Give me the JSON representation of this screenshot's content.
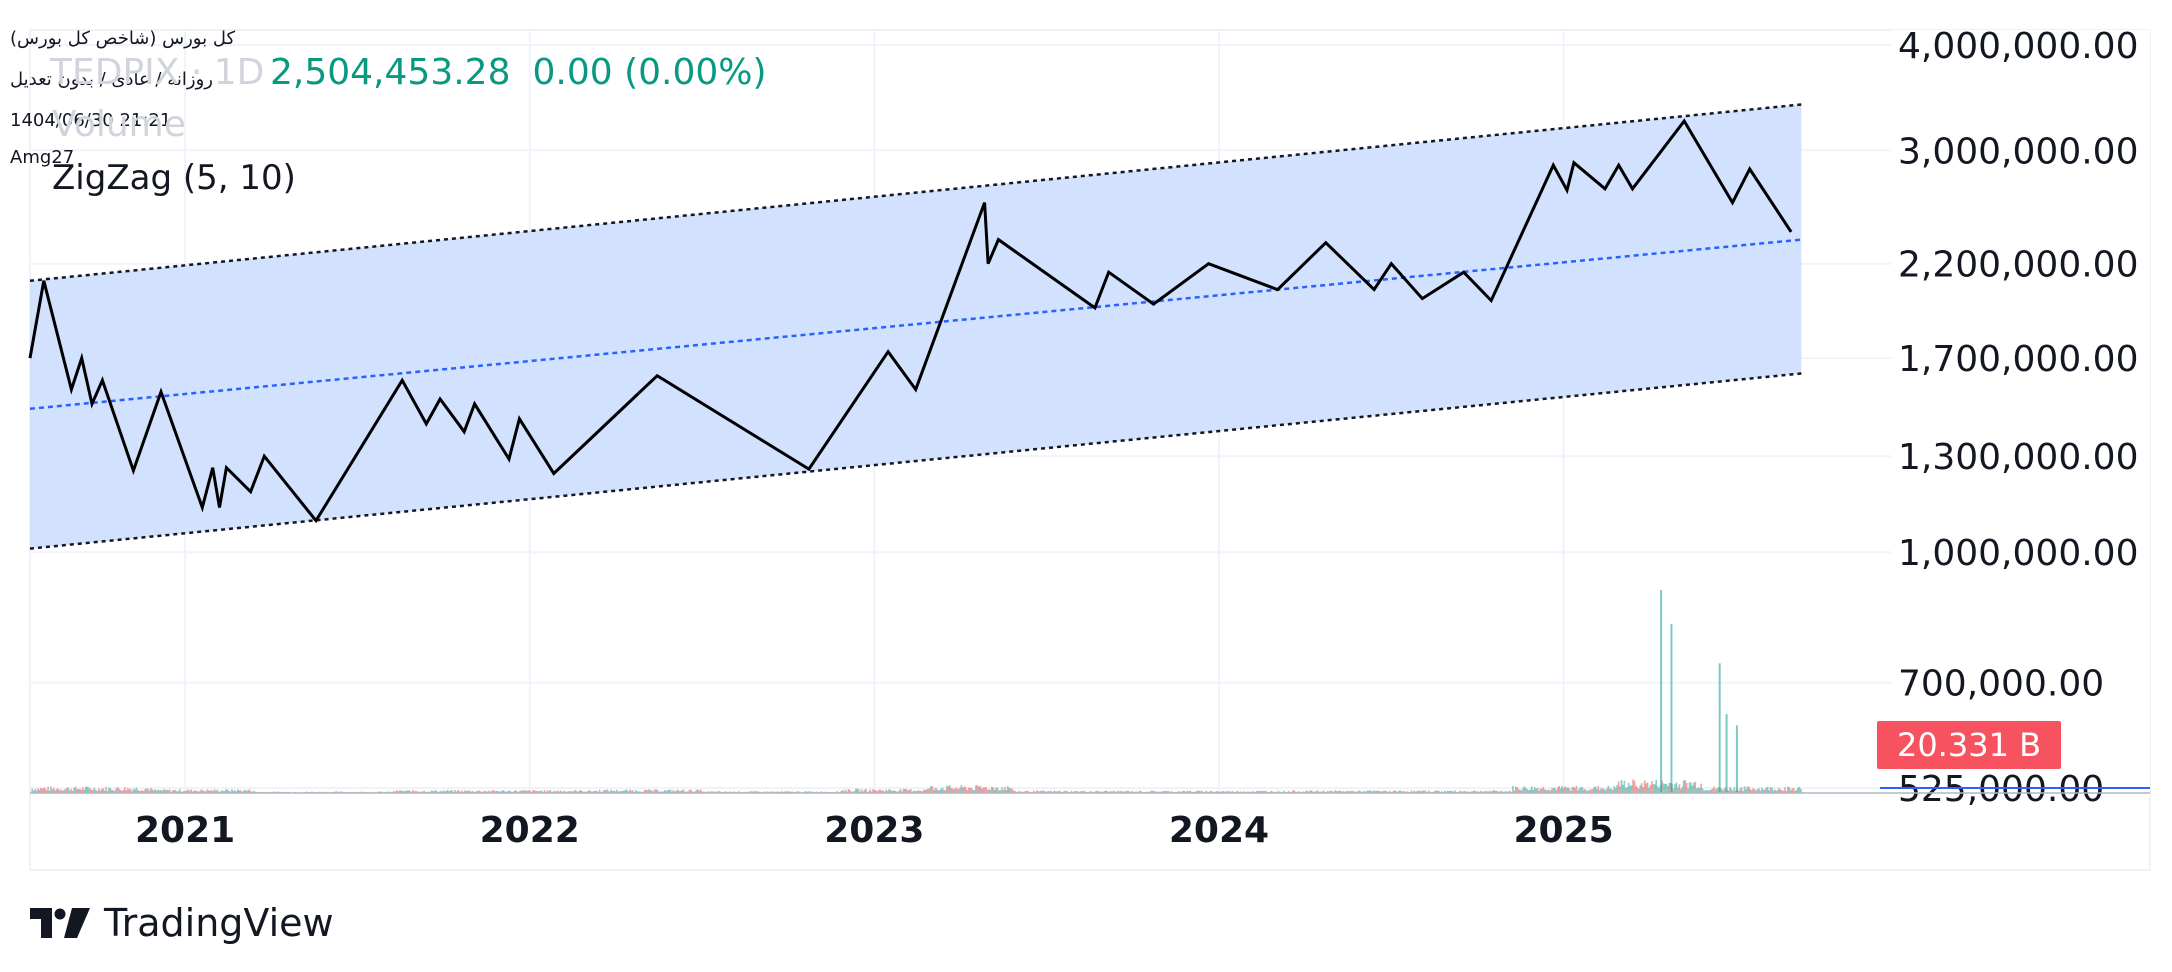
{
  "header": {
    "title": "کل بورس (شاخص کل بورس)",
    "interval_line": "روزانه / عادی / بدون تعدیل",
    "datetime": "1404/06/30 21:21",
    "author": "Amg27"
  },
  "legend": {
    "ghost_symbol": "TEDPIX · 1D",
    "ghost_volume": "Volume",
    "last_price": "2,504,453.28",
    "change": "0.00 (0.00%)",
    "indicator": "ZigZag (5, 10)"
  },
  "volume_badge": "20.331 B",
  "branding": {
    "name": "TradingView"
  },
  "colors": {
    "price_up": "#089981",
    "volume_up": "#26a69a",
    "volume_down": "#ef5350",
    "badge_bg": "#f7525f",
    "channel_fill": "#d0dffd",
    "median_line": "#2962ff",
    "boundary_line": "#131722",
    "zigzag": "#000000",
    "grid": "#f0f3fa"
  },
  "chart_data": {
    "type": "line",
    "title": "",
    "xlabel": "",
    "ylabel": "",
    "scale": "log",
    "x_range": [
      2020.55,
      2025.95
    ],
    "ylim": [
      525000,
      4000000
    ],
    "x_ticks": [
      {
        "value": 2021.0,
        "label": "2021"
      },
      {
        "value": 2022.0,
        "label": "2022"
      },
      {
        "value": 2023.0,
        "label": "2023"
      },
      {
        "value": 2024.0,
        "label": "2024"
      },
      {
        "value": 2025.0,
        "label": "2025"
      }
    ],
    "y_ticks": [
      {
        "value": 4000000,
        "label": "4,000,000.00"
      },
      {
        "value": 3000000,
        "label": "3,000,000.00"
      },
      {
        "value": 2200000,
        "label": "2,200,000.00"
      },
      {
        "value": 1700000,
        "label": "1,700,000.00"
      },
      {
        "value": 1300000,
        "label": "1,300,000.00"
      },
      {
        "value": 1000000,
        "label": "1,000,000.00"
      },
      {
        "value": 700000,
        "label": "700,000.00"
      },
      {
        "value": 525000,
        "label": "525,000.00"
      }
    ],
    "grid": true,
    "series": [
      {
        "name": "ZigZag (5, 10)",
        "points": [
          [
            2020.55,
            1700000
          ],
          [
            2020.59,
            2100000
          ],
          [
            2020.67,
            1560000
          ],
          [
            2020.7,
            1700000
          ],
          [
            2020.73,
            1500000
          ],
          [
            2020.76,
            1600000
          ],
          [
            2020.85,
            1250000
          ],
          [
            2020.93,
            1550000
          ],
          [
            2021.05,
            1130000
          ],
          [
            2021.08,
            1260000
          ],
          [
            2021.1,
            1130000
          ],
          [
            2021.12,
            1260000
          ],
          [
            2021.19,
            1180000
          ],
          [
            2021.23,
            1300000
          ],
          [
            2021.38,
            1090000
          ],
          [
            2021.63,
            1600000
          ],
          [
            2021.7,
            1420000
          ],
          [
            2021.74,
            1520000
          ],
          [
            2021.81,
            1390000
          ],
          [
            2021.84,
            1500000
          ],
          [
            2021.94,
            1290000
          ],
          [
            2021.97,
            1440000
          ],
          [
            2022.07,
            1240000
          ],
          [
            2022.37,
            1620000
          ],
          [
            2022.81,
            1255000
          ],
          [
            2023.04,
            1730000
          ],
          [
            2023.12,
            1560000
          ],
          [
            2023.32,
            2600000
          ],
          [
            2023.33,
            2200000
          ],
          [
            2023.36,
            2350000
          ],
          [
            2023.64,
            1950000
          ],
          [
            2023.68,
            2150000
          ],
          [
            2023.81,
            1970000
          ],
          [
            2023.97,
            2200000
          ],
          [
            2024.17,
            2050000
          ],
          [
            2024.31,
            2330000
          ],
          [
            2024.45,
            2050000
          ],
          [
            2024.5,
            2200000
          ],
          [
            2024.59,
            2000000
          ],
          [
            2024.71,
            2150000
          ],
          [
            2024.79,
            1990000
          ],
          [
            2024.97,
            2880000
          ],
          [
            2025.01,
            2690000
          ],
          [
            2025.03,
            2900000
          ],
          [
            2025.12,
            2700000
          ],
          [
            2025.16,
            2880000
          ],
          [
            2025.2,
            2700000
          ],
          [
            2025.35,
            3250000
          ],
          [
            2025.49,
            2600000
          ],
          [
            2025.54,
            2850000
          ],
          [
            2025.66,
            2400000
          ]
        ]
      }
    ],
    "channel": {
      "upper": {
        "start": [
          2020.55,
          2100000
        ],
        "end": [
          2025.69,
          3400000
        ]
      },
      "median": {
        "start": [
          2020.55,
          1480000
        ],
        "end": [
          2025.69,
          2350000
        ]
      },
      "lower": {
        "start": [
          2020.55,
          1010000
        ],
        "end": [
          2025.69,
          1630000
        ]
      }
    },
    "volume": {
      "name": "Volume",
      "last_value_label": "20.331 B",
      "max": 36000000000,
      "spikes": [
        {
          "x": 2025.28,
          "value": 36000000000
        },
        {
          "x": 2025.31,
          "value": 30000000000
        },
        {
          "x": 2025.45,
          "value": 23000000000
        },
        {
          "x": 2025.47,
          "value": 14000000000
        },
        {
          "x": 2025.5,
          "value": 12000000000
        }
      ],
      "regions": [
        {
          "from": 2020.55,
          "to": 2020.9,
          "level": 0.22
        },
        {
          "from": 2020.9,
          "to": 2021.2,
          "level": 0.13
        },
        {
          "from": 2021.2,
          "to": 2021.6,
          "level": 0.05
        },
        {
          "from": 2021.6,
          "to": 2022.2,
          "level": 0.1
        },
        {
          "from": 2022.2,
          "to": 2022.5,
          "level": 0.12
        },
        {
          "from": 2022.5,
          "to": 2022.9,
          "level": 0.06
        },
        {
          "from": 2022.9,
          "to": 2023.15,
          "level": 0.14
        },
        {
          "from": 2023.15,
          "to": 2023.4,
          "level": 0.26
        },
        {
          "from": 2023.4,
          "to": 2024.2,
          "level": 0.08
        },
        {
          "from": 2024.2,
          "to": 2024.85,
          "level": 0.09
        },
        {
          "from": 2024.85,
          "to": 2025.15,
          "level": 0.24
        },
        {
          "from": 2025.15,
          "to": 2025.4,
          "level": 0.45
        },
        {
          "from": 2025.4,
          "to": 2025.69,
          "level": 0.22
        }
      ]
    }
  }
}
